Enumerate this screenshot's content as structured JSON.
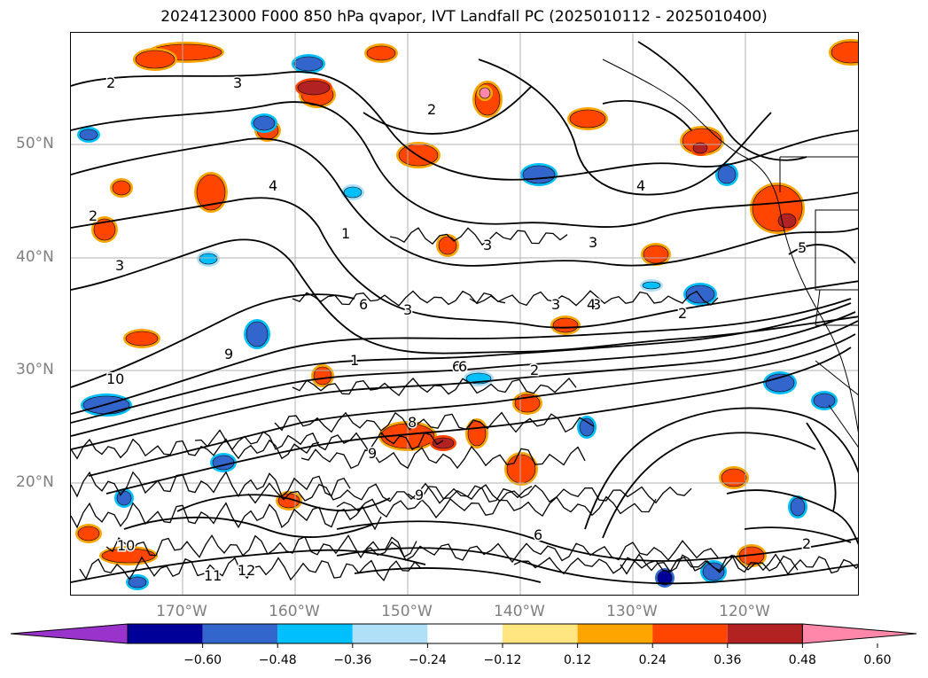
{
  "title": "2024123000 F000 850 hPa qvapor, IVT Landfall PC (2025010112 - 2025010400)",
  "lat_labels": [
    "50°N",
    "40°N",
    "30°N",
    "20°N"
  ],
  "lon_labels": [
    "170°W",
    "160°W",
    "150°W",
    "140°W",
    "130°W",
    "120°W"
  ],
  "colorbar": {
    "colors": [
      "#9933cc",
      "#000099",
      "#3366cc",
      "#00bfff",
      "#b0e0f8",
      "#ffffff",
      "#ffe680",
      "#ffa500",
      "#ff4500",
      "#b22222",
      "#ff88aa"
    ],
    "tick_labels": [
      "−0.60",
      "−0.48",
      "−0.36",
      "−0.24",
      "−0.12",
      "0.12",
      "0.24",
      "0.36",
      "0.48",
      "0.60"
    ],
    "extend": "both"
  },
  "contour_labels": [
    "2",
    "3",
    "2",
    "3",
    "1",
    "4",
    "6",
    "9",
    "10",
    "3",
    "2",
    "6",
    "8",
    "9",
    "3",
    "1",
    "2",
    "3",
    "4",
    "5",
    "3",
    "6",
    "2",
    "11",
    "12",
    "10",
    "9",
    "6",
    "3",
    "4",
    "2"
  ],
  "map": {
    "region": "North Pacific",
    "lat_range": [
      10,
      60
    ],
    "lon_range": [
      -180,
      -110
    ],
    "gridlines": true
  }
}
